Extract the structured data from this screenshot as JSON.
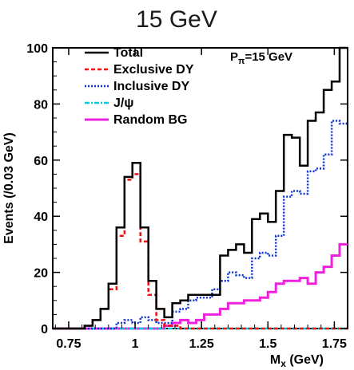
{
  "chart_data": {
    "type": "line",
    "title": "15 GeV",
    "xlabel": "M",
    "xlabel_sub": "x",
    "xlabel_unit": " (GeV)",
    "ylabel": "Events (/0.03 GeV)",
    "annotation": {
      "main": "P",
      "sub": "π",
      "rest": "=15 GeV"
    },
    "xlim": [
      0.69,
      1.8
    ],
    "ylim": [
      0,
      100
    ],
    "xticks": [
      0.75,
      1,
      1.25,
      1.5,
      1.75
    ],
    "xtick_labels": [
      "0.75",
      "1",
      "1.25",
      "1.5",
      "1.75"
    ],
    "yticks": [
      0,
      20,
      40,
      60,
      80,
      100
    ],
    "ytick_labels": [
      "0",
      "20",
      "40",
      "60",
      "80",
      "100"
    ],
    "legend_position": "top-left",
    "bin_edges": [
      0.69,
      0.72,
      0.75,
      0.78,
      0.81,
      0.84,
      0.87,
      0.9,
      0.93,
      0.96,
      0.99,
      1.02,
      1.05,
      1.08,
      1.11,
      1.14,
      1.17,
      1.2,
      1.23,
      1.26,
      1.29,
      1.32,
      1.35,
      1.38,
      1.41,
      1.44,
      1.47,
      1.5,
      1.53,
      1.56,
      1.59,
      1.62,
      1.65,
      1.68,
      1.71,
      1.74,
      1.77,
      1.8
    ],
    "series": [
      {
        "name": "Total",
        "color": "#000000",
        "dash": "",
        "width": 2.5,
        "values": [
          0,
          0,
          0,
          0,
          1,
          3,
          7,
          16,
          36,
          54,
          59,
          36,
          17,
          7,
          4,
          9,
          10,
          12,
          12,
          12,
          12,
          26,
          28,
          30,
          27,
          39,
          41,
          38,
          49,
          69,
          68,
          58,
          74,
          77,
          85,
          88,
          100
        ]
      },
      {
        "name": "Exclusive DY",
        "color": "#ee1111",
        "dash": "5,3",
        "width": 2.5,
        "values": [
          0,
          0,
          0,
          0,
          1,
          3,
          7,
          14,
          33,
          53,
          55,
          31,
          12,
          3,
          1,
          1,
          0,
          0,
          0,
          0,
          0,
          0,
          0,
          0,
          0,
          0,
          0,
          0,
          0,
          0,
          0,
          0,
          0,
          0,
          0,
          0,
          0
        ]
      },
      {
        "name": "Inclusive DY",
        "color": "#1133cc",
        "dash": "2,2",
        "width": 2.5,
        "values": [
          0,
          0,
          0,
          0,
          0,
          0,
          0,
          0,
          2,
          3,
          2,
          4,
          3,
          2,
          2,
          6,
          7,
          10,
          11,
          11,
          14,
          17,
          20,
          19,
          18,
          25,
          27,
          26,
          33,
          47,
          49,
          48,
          56,
          57,
          62,
          74,
          73
        ]
      },
      {
        "name": "J/ψ",
        "color": "#00ccdd",
        "dash": "6,2,2,2",
        "width": 2.5,
        "values": [
          0,
          0,
          0,
          0,
          0,
          0,
          0,
          0,
          0,
          0,
          0,
          0,
          0,
          0,
          0,
          0,
          0,
          0,
          0,
          0,
          0,
          0,
          0,
          0,
          0,
          0,
          0,
          0,
          0,
          0,
          0,
          0,
          0,
          0,
          0,
          0,
          0
        ]
      },
      {
        "name": "Random BG",
        "color": "#ee22dd",
        "dash": "",
        "width": 3,
        "values": [
          0,
          0,
          0,
          0,
          0,
          0,
          0,
          0,
          0,
          0,
          0,
          0,
          0,
          0,
          1,
          2,
          3,
          2,
          3,
          5,
          5,
          7,
          9,
          9,
          10,
          10,
          11,
          13,
          16,
          17,
          17,
          18,
          16,
          20,
          22,
          26,
          30
        ]
      }
    ]
  }
}
